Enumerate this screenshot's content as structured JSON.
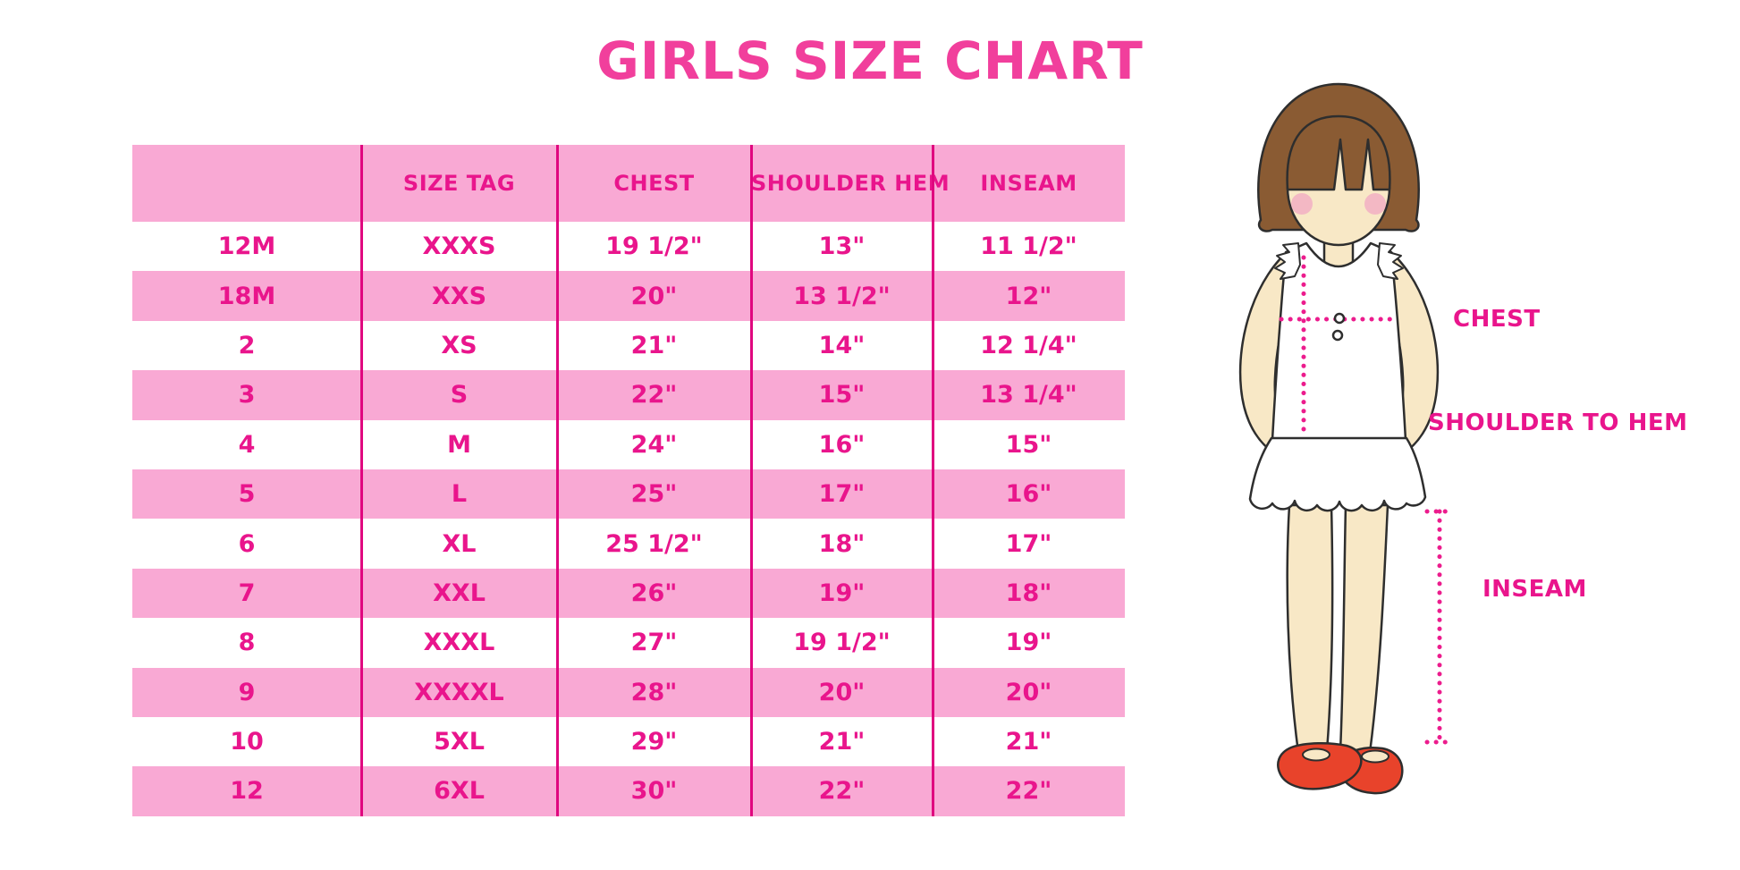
{
  "title": "GIRLS SIZE CHART",
  "chart_data": {
    "type": "table",
    "title": "GIRLS SIZE CHART",
    "columns": [
      "",
      "SIZE TAG",
      "CHEST",
      "SHOULDER HEM",
      "INSEAM"
    ],
    "rows": [
      [
        "12M",
        "XXXS",
        "19 1/2\"",
        "13\"",
        "11 1/2\""
      ],
      [
        "18M",
        "XXS",
        "20\"",
        "13 1/2\"",
        "12\""
      ],
      [
        "2",
        "XS",
        "21\"",
        "14\"",
        "12 1/4\""
      ],
      [
        "3",
        "S",
        "22\"",
        "15\"",
        "13 1/4\""
      ],
      [
        "4",
        "M",
        "24\"",
        "16\"",
        "15\""
      ],
      [
        "5",
        "L",
        "25\"",
        "17\"",
        "16\""
      ],
      [
        "6",
        "XL",
        "25 1/2\"",
        "18\"",
        "17\""
      ],
      [
        "7",
        "XXL",
        "26\"",
        "19\"",
        "18\""
      ],
      [
        "8",
        "XXXL",
        "27\"",
        "19 1/2\"",
        "19\""
      ],
      [
        "9",
        "XXXXL",
        "28\"",
        "20\"",
        "20\""
      ],
      [
        "10",
        "5XL",
        "29\"",
        "21\"",
        "21\""
      ],
      [
        "12",
        "6XL",
        "30\"",
        "22\"",
        "22\""
      ]
    ]
  },
  "diagram": {
    "chest_label": "CHEST",
    "shoulder_to_hem_label": "SHOULDER TO HEM",
    "inseam_label": "INSEAM"
  },
  "colors": {
    "title_pink": "#F13F9C",
    "table_text_pink": "#E9158C",
    "row_pink": "#F9A9D4",
    "divider_magenta": "#E0067F",
    "measure_dot_pink": "#EC1C8D",
    "hair_brown": "#8A5B33",
    "skin": "#F8E8C6",
    "blush": "#F2AFC3",
    "shirt_white": "#FFFFFF",
    "shoe_red": "#E8432B"
  }
}
